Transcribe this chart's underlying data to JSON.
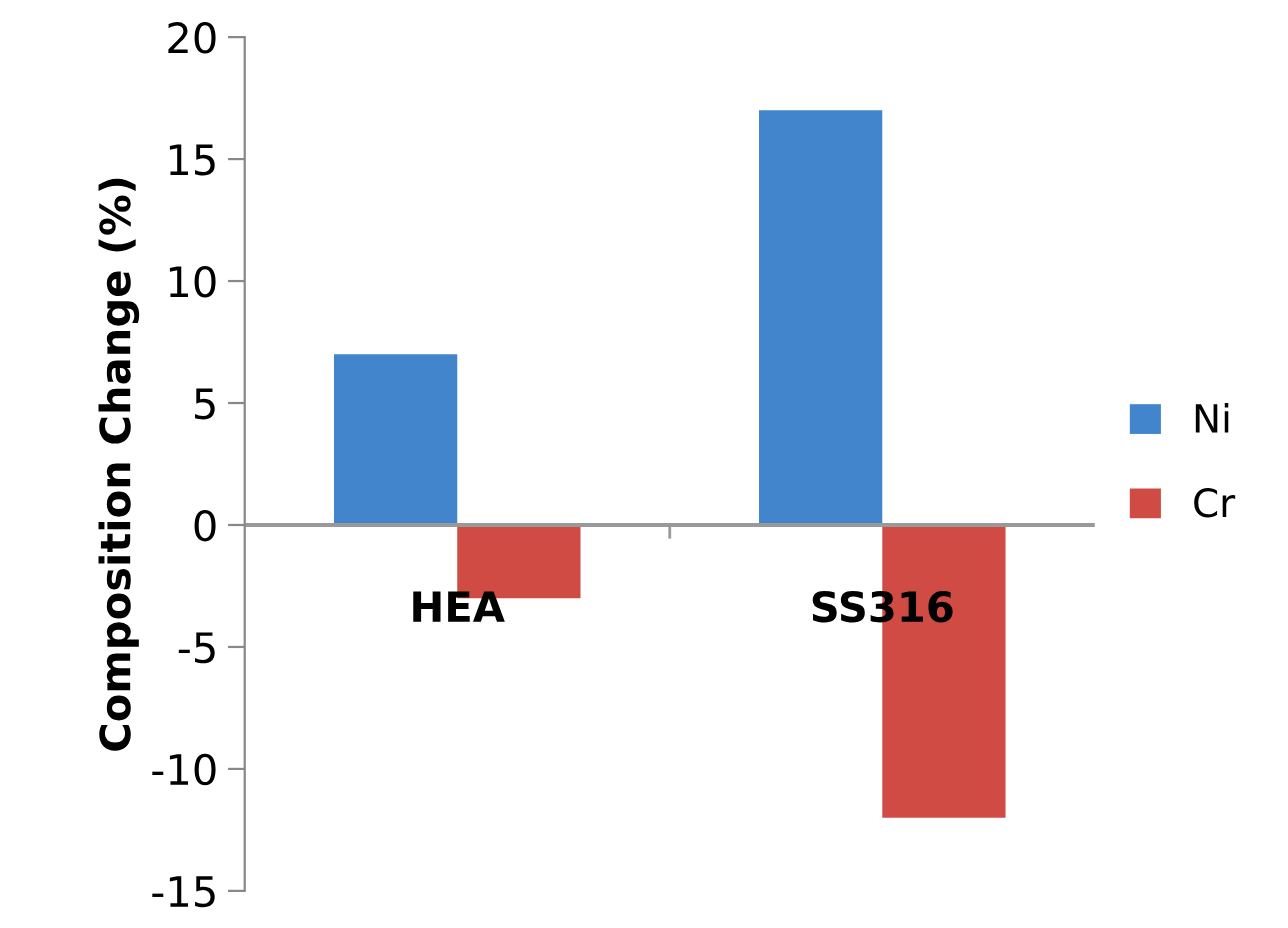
{
  "chart_data": {
    "type": "bar",
    "ylabel": "Composition Change (%)",
    "categories": [
      "HEA",
      "SS316"
    ],
    "series": [
      {
        "name": "Ni",
        "color": "#4285cc",
        "values": [
          7,
          17
        ]
      },
      {
        "name": "Cr",
        "color": "#cf4b43",
        "values": [
          -3,
          -12
        ]
      }
    ],
    "ylim": [
      -15,
      20
    ],
    "yticks": [
      -15,
      -10,
      -5,
      0,
      5,
      10,
      15,
      20
    ],
    "grid": false,
    "legend": "right"
  }
}
